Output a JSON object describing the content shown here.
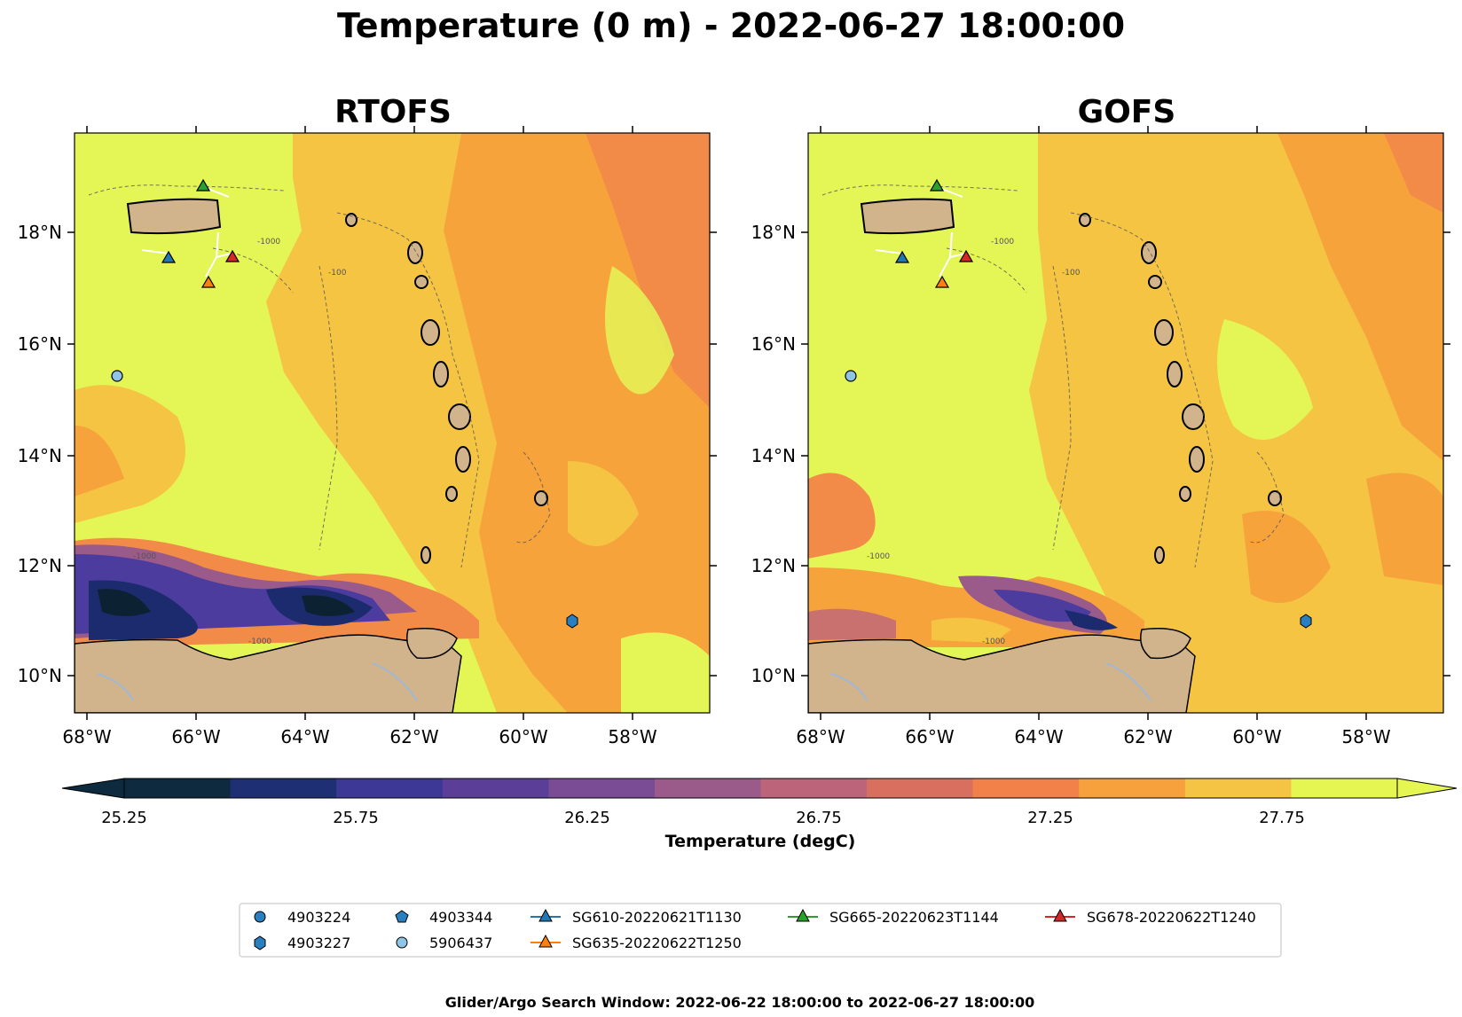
{
  "title": "Temperature (0 m) - 2022-06-27 18:00:00",
  "panels": [
    {
      "title": "RTOFS"
    },
    {
      "title": "GOFS"
    }
  ],
  "map": {
    "lon_ticks": [
      "68°W",
      "66°W",
      "64°W",
      "62°W",
      "60°W",
      "58°W"
    ],
    "lat_ticks": [
      "18°N",
      "16°N",
      "14°N",
      "12°N",
      "10°N"
    ],
    "contour_labels": [
      "-1000",
      "-100"
    ],
    "colors": {
      "land": "#d2b48c",
      "lake": "#9fb8d6",
      "warm_high": "#e4f556",
      "warm": "#f5c442",
      "orange": "#f7a33c",
      "orange_dark": "#f28a48",
      "cool_mid": "#9a5a8a",
      "cool": "#4b3c9e",
      "cold": "#1c2b6e",
      "coldest": "#0c2233"
    }
  },
  "colorbar": {
    "label": "Temperature (degC)",
    "tick_labels": [
      "25.25",
      "25.75",
      "26.25",
      "26.75",
      "27.25",
      "27.75"
    ],
    "colors": [
      "#0d2a3e",
      "#1f2f73",
      "#3d3795",
      "#5b3e98",
      "#7a4c96",
      "#9a5a8a",
      "#bb647a",
      "#d9705f",
      "#f18149",
      "#f7a13c",
      "#f6c445",
      "#e5f552"
    ]
  },
  "legend": {
    "items": [
      {
        "label": "4903224",
        "marker": "circle",
        "color": "#2a7fc1"
      },
      {
        "label": "4903227",
        "marker": "hexagon",
        "color": "#2a7fc1"
      },
      {
        "label": "4903344",
        "marker": "pentagon",
        "color": "#2a7fc1"
      },
      {
        "label": "5906437",
        "marker": "circle",
        "color": "#8ec5e6"
      },
      {
        "label": "SG610-20220621T1130",
        "marker": "triangle",
        "color": "#1f77b4"
      },
      {
        "label": "SG635-20220622T1250",
        "marker": "triangle",
        "color": "#ff7f0e"
      },
      {
        "label": "SG665-20220623T1144",
        "marker": "triangle",
        "color": "#2ca02c"
      },
      {
        "label": "SG678-20220622T1240",
        "marker": "triangle",
        "color": "#d62728"
      }
    ]
  },
  "footer": "Glider/Argo Search Window: 2022-06-22 18:00:00 to 2022-06-27 18:00:00"
}
